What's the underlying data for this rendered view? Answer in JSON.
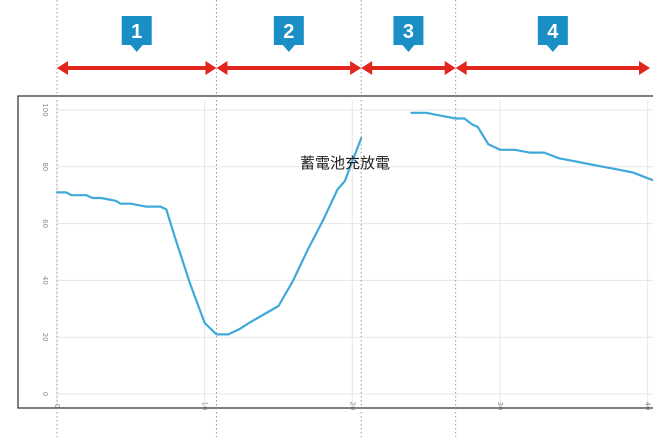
{
  "colors": {
    "badge_fill": "#1a8fc6",
    "badge_text": "#ffffff",
    "arrow": "#e0261d",
    "line": "#3fa9d9",
    "divider": "#9a9a9a",
    "frame": "#2a2a2a",
    "grid": "#e6e6e6",
    "tick_text": "#888888",
    "label_text": "#222222"
  },
  "phases": [
    {
      "label": "1",
      "x_start": 0,
      "x_end": 10.8
    },
    {
      "label": "2",
      "x_start": 10.8,
      "x_end": 20.6
    },
    {
      "label": "3",
      "x_start": 20.6,
      "x_end": 27
    },
    {
      "label": "4",
      "x_start": 27,
      "x_end": 40.5
    }
  ],
  "chart_data": {
    "type": "line",
    "series_label": "蓄電池充放電",
    "xlim": [
      0,
      40.5
    ],
    "ylim": [
      0,
      100
    ],
    "y_ticks": [
      0,
      20,
      40,
      60,
      80,
      100
    ],
    "y_tick_labels": [
      "0",
      "20",
      "40",
      "60",
      "80",
      "100"
    ],
    "x_ticks": [
      0,
      10,
      20,
      30,
      40
    ],
    "x_tick_labels": [
      "0",
      "10",
      "20",
      "30",
      "40"
    ],
    "grid": true,
    "series": [
      {
        "segments": [
          {
            "x": [
              0,
              0.6,
              1,
              2,
              2.4,
              3,
              4,
              4.3,
              5,
              6,
              7,
              7.4,
              8,
              9,
              10,
              10.8,
              11.6,
              12.4,
              13,
              14,
              15,
              16,
              17,
              18,
              19,
              19.5,
              20,
              20.6
            ],
            "y": [
              71,
              71,
              70,
              70,
              69,
              69,
              68,
              67,
              67,
              66,
              66,
              65,
              55,
              39,
              25,
              21,
              21,
              23,
              25,
              28,
              31,
              40,
              51,
              61,
              72,
              75,
              82,
              90
            ]
          },
          {
            "x": [
              24,
              25,
              26,
              27,
              27.6,
              28.1,
              28.5,
              29.2,
              30,
              31,
              32,
              33,
              34,
              35,
              36,
              37,
              38,
              39,
              40,
              40.5
            ],
            "y": [
              99,
              99,
              98,
              97,
              97,
              95,
              94,
              88,
              86,
              86,
              85,
              85,
              83,
              82,
              81,
              80,
              79,
              78,
              76,
              75
            ]
          }
        ]
      }
    ]
  }
}
